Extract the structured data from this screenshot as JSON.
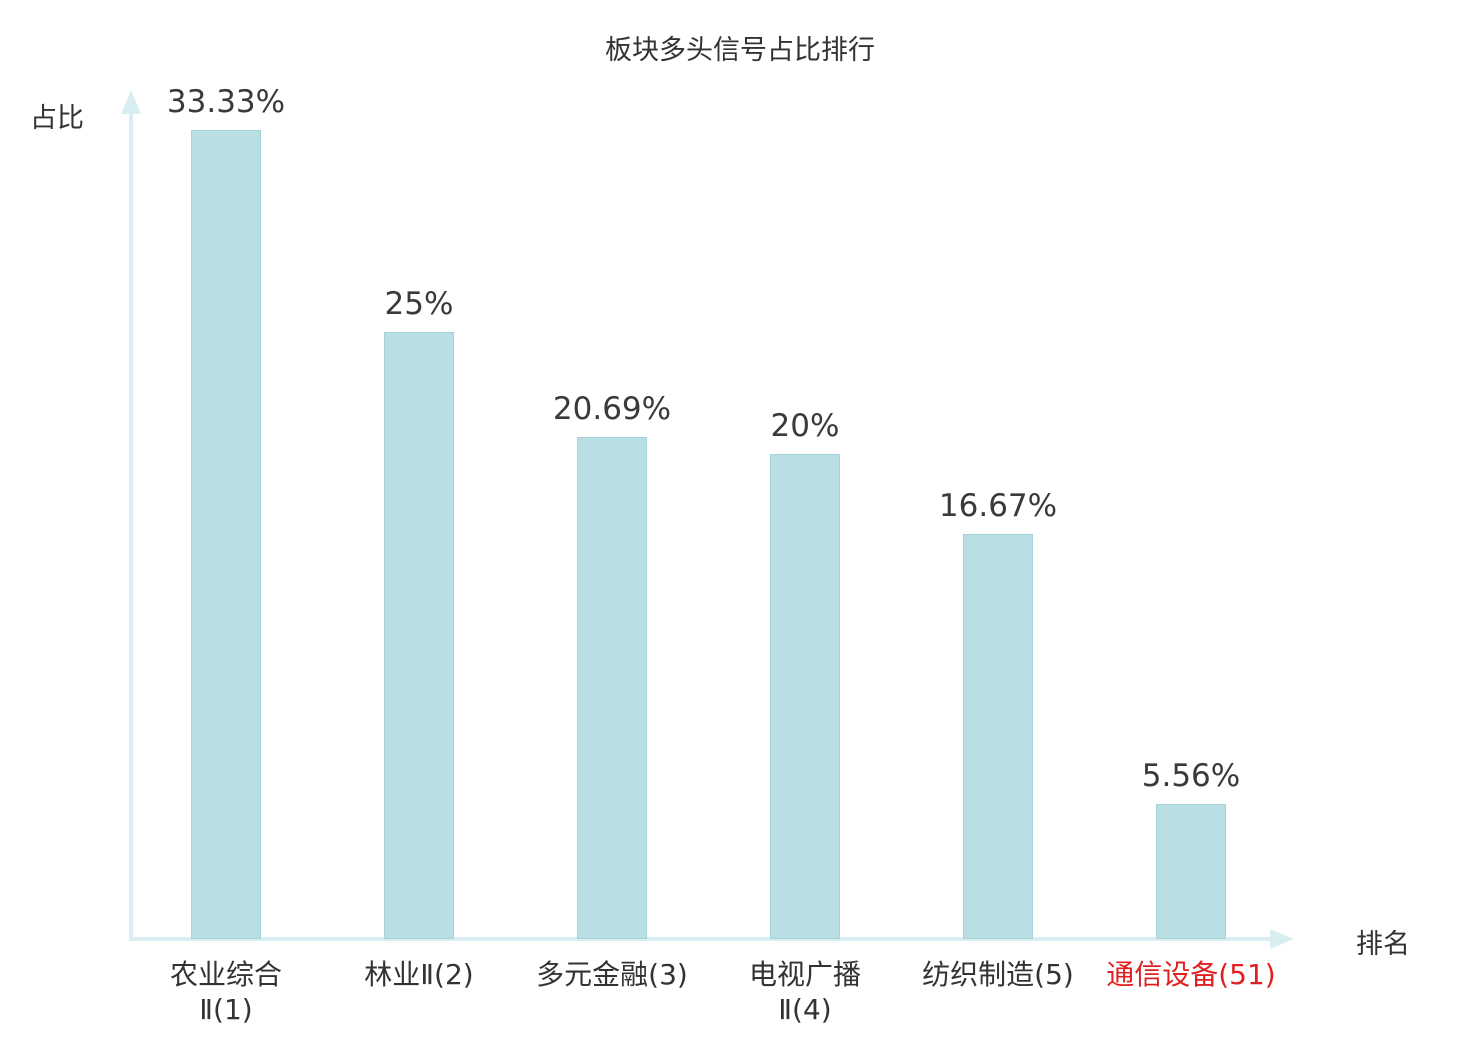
{
  "chart_data": {
    "type": "bar",
    "title": "板块多头信号占比排行",
    "xlabel": "排名",
    "ylabel": "占比",
    "categories": [
      "农业综合\nⅡ(1)",
      "林业Ⅱ(2)",
      "多元金融(3)",
      "电视广播\nⅡ(4)",
      "纺织制造(5)",
      "通信设备(51)"
    ],
    "values": [
      33.33,
      25,
      20.69,
      20,
      16.67,
      5.56
    ],
    "value_labels": [
      "33.33%",
      "25%",
      "20.69%",
      "20%",
      "16.67%",
      "5.56%"
    ],
    "highlighted_category_index": 5,
    "bar_color": "#b9dee3",
    "axis_color": "#d9eef0",
    "text_color": "#333333",
    "highlight_label_color": "#e02020",
    "ylim": [
      0,
      33.33
    ],
    "grid": false,
    "legend": "none"
  }
}
